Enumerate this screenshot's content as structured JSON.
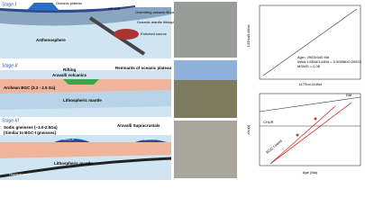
{
  "stages": [
    "Stage-I",
    "Stage-II",
    "Stage-III"
  ],
  "stage1": {
    "plateau": "Oceanic plateau",
    "lp": "LP-GG",
    "hp": "HP-GG",
    "overriding": "Overriding oceanic lithosphere",
    "mantle": "Oceanic mantle lithosphere",
    "enriched": "Enriched source",
    "astheno": "Asthenosphere"
  },
  "stage2": {
    "rifting": "Rifting",
    "volcanics": "Aravalli volcanics",
    "remnants": "Remnants of oceanic plateau",
    "bgc": "Archean BGC (3.3 - 2.5 Ga)",
    "mantle": "Lithospheric mantle"
  },
  "stage3": {
    "sodic": "Sodic gneisses (~3.0-2.5Ga)",
    "similar": "(Similar to BGC-I gneisses)",
    "bgc2": "BGC-II",
    "bgc1": "BGC-I",
    "aravalli": "Aravalli Supracrustals",
    "mantle": "Lithospheric mantle",
    "crust": "Oceanic crust"
  },
  "isochron": {
    "y_label": "143Nd/144Nd",
    "x_label": "147Sm/144Nd",
    "notes": [
      "Age= 2903±340 Ma",
      "Initial 143Nd/144Nd = 0.50856±0.00033",
      "MSWD = 0.38"
    ]
  },
  "evolution": {
    "y_label": "εNd(t)",
    "x_label": "Age (Ma)",
    "chur": "CHUR",
    "dm": "DM",
    "trend": "BGC-I trend"
  }
}
